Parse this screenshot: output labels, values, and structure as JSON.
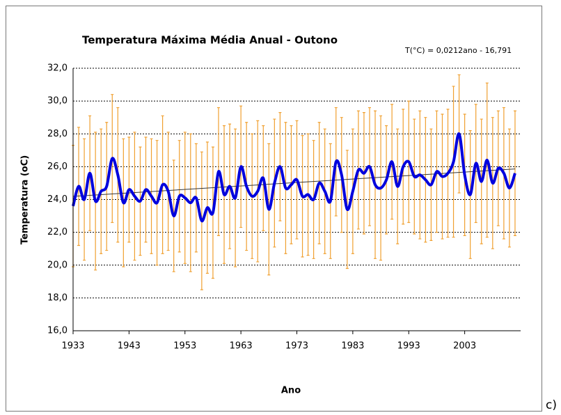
{
  "chart_data": {
    "type": "line",
    "title": "Temperatura Máxima Média Anual - Outono",
    "annotation": "T(°C) = 0,0212ano - 16,791",
    "x_label": "Ano",
    "y_label": "Temperatura (oC)",
    "panel_label": "c)",
    "x": [
      1933,
      1934,
      1935,
      1936,
      1937,
      1938,
      1939,
      1940,
      1941,
      1942,
      1943,
      1944,
      1945,
      1946,
      1947,
      1948,
      1949,
      1950,
      1951,
      1952,
      1953,
      1954,
      1955,
      1956,
      1957,
      1958,
      1959,
      1960,
      1961,
      1962,
      1963,
      1964,
      1965,
      1966,
      1967,
      1968,
      1969,
      1970,
      1971,
      1972,
      1973,
      1974,
      1975,
      1976,
      1977,
      1978,
      1979,
      1980,
      1981,
      1982,
      1983,
      1984,
      1985,
      1986,
      1987,
      1988,
      1989,
      1990,
      1991,
      1992,
      1993,
      1994,
      1995,
      1996,
      1997,
      1998,
      1999,
      2000,
      2001,
      2002,
      2003,
      2004,
      2005,
      2006,
      2007,
      2008,
      2009,
      2010,
      2011,
      2012
    ],
    "series": [
      {
        "color": "#0000dd",
        "values": [
          23.6,
          24.8,
          24.0,
          25.6,
          23.9,
          24.5,
          24.8,
          26.5,
          25.5,
          23.8,
          24.6,
          24.2,
          23.9,
          24.6,
          24.2,
          23.8,
          24.9,
          24.5,
          23.0,
          24.2,
          24.1,
          23.8,
          24.1,
          22.7,
          23.5,
          23.2,
          25.7,
          24.3,
          24.8,
          24.1,
          26.0,
          24.8,
          24.2,
          24.5,
          25.3,
          23.4,
          25.0,
          26.0,
          24.7,
          24.9,
          25.2,
          24.2,
          24.3,
          24.0,
          25.0,
          24.5,
          23.9,
          26.3,
          25.5,
          23.4,
          24.5,
          25.8,
          25.6,
          26.0,
          24.9,
          24.7,
          25.2,
          26.3,
          24.8,
          26.0,
          26.3,
          25.4,
          25.5,
          25.2,
          24.9,
          25.7,
          25.4,
          25.6,
          26.3,
          28.0,
          25.5,
          24.3,
          26.2,
          25.1,
          26.4,
          25.0,
          25.9,
          25.6,
          24.7,
          25.6
        ],
        "errors": [
          3.7,
          3.6,
          3.7,
          3.5,
          4.2,
          3.8,
          3.9,
          3.9,
          4.1,
          3.9,
          3.2,
          3.9,
          3.3,
          3.2,
          3.5,
          3.8,
          4.2,
          3.6,
          3.4,
          3.4,
          4.0,
          4.2,
          3.3,
          4.2,
          4.0,
          4.0,
          3.9,
          4.2,
          3.8,
          4.2,
          3.7,
          3.9,
          3.8,
          4.3,
          3.2,
          4.0,
          3.9,
          3.3,
          4.0,
          3.6,
          3.6,
          3.7,
          3.7,
          3.6,
          3.7,
          3.8,
          3.5,
          3.3,
          3.5,
          3.6,
          3.8,
          3.6,
          3.7,
          3.6,
          4.5,
          4.4,
          3.3,
          3.5,
          3.5,
          3.5,
          3.7,
          3.5,
          3.9,
          3.8,
          3.4,
          3.7,
          3.8,
          3.9,
          4.6,
          3.6,
          3.7,
          3.9,
          3.6,
          3.8,
          4.7,
          4.0,
          3.5,
          4.0,
          3.6,
          3.8
        ]
      }
    ],
    "trend": {
      "color": "#333333",
      "x": [
        1933,
        2012
      ],
      "values": [
        24.19,
        25.86
      ]
    },
    "xlim": [
      1933,
      2013
    ],
    "ylim": [
      16,
      32
    ],
    "xticks": [
      1933,
      1943,
      1953,
      1963,
      1973,
      1983,
      1993,
      2003
    ],
    "yticks": [
      {
        "value": 16,
        "label": "16,0"
      },
      {
        "value": 18,
        "label": "18,0"
      },
      {
        "value": 20,
        "label": "20,0"
      },
      {
        "value": 22,
        "label": "22,0"
      },
      {
        "value": 24,
        "label": "24,0"
      },
      {
        "value": 26,
        "label": "26,0"
      },
      {
        "value": 28,
        "label": "28,0"
      },
      {
        "value": 30,
        "label": "30,0"
      },
      {
        "value": 32,
        "label": "32,0"
      }
    ],
    "error_color": "#f0a030",
    "grid": true
  }
}
